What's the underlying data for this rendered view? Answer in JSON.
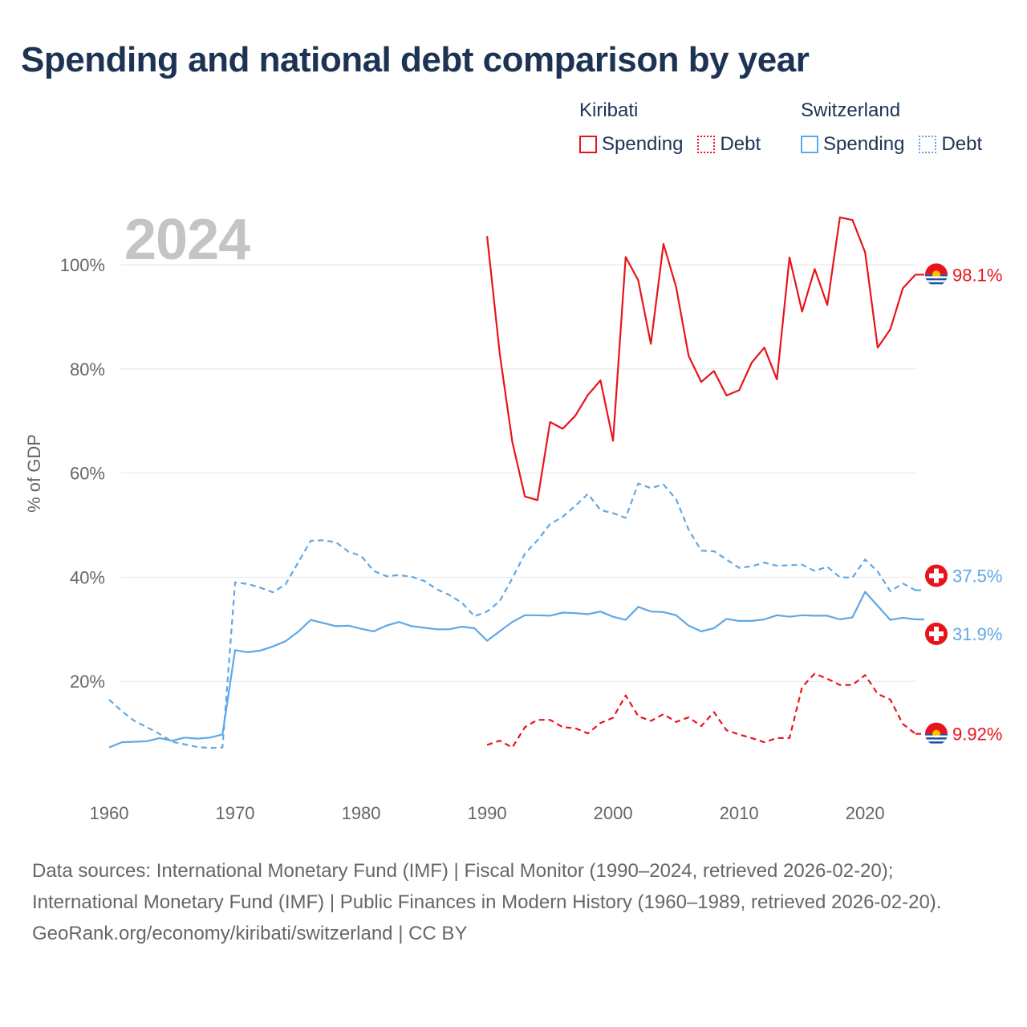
{
  "title": "Spending and national debt comparison by year",
  "legend": {
    "groups": [
      {
        "country": "Kiribati",
        "color": "#e8141b",
        "items": [
          {
            "label": "Spending",
            "style": "solid"
          },
          {
            "label": "Debt",
            "style": "dotted"
          }
        ]
      },
      {
        "country": "Switzerland",
        "color": "#5ea8e6",
        "items": [
          {
            "label": "Spending",
            "style": "solid"
          },
          {
            "label": "Debt",
            "style": "dotted"
          }
        ]
      }
    ]
  },
  "chart_data": {
    "type": "line",
    "year_label": "2024",
    "ylabel": "% of GDP",
    "xlim": [
      1960,
      2024
    ],
    "ylim": [
      0,
      110
    ],
    "x_ticks": [
      1960,
      1970,
      1980,
      1990,
      2000,
      2010,
      2020
    ],
    "x_tick_labels": [
      "1960",
      "1970",
      "1980",
      "1990",
      "2000",
      "2010",
      "2020"
    ],
    "y_ticks": [
      20,
      40,
      60,
      80,
      100
    ],
    "y_tick_labels": [
      "20%",
      "40%",
      "60%",
      "80%",
      "100%"
    ],
    "series": [
      {
        "name": "Kiribati Spending",
        "country": "Kiribati",
        "flag": "kiribati",
        "color": "#e8141b",
        "dash": "solid",
        "start_year": 1990,
        "values": [
          105.5,
          83,
          66,
          55.5,
          54.8,
          69.8,
          68.5,
          71,
          75,
          77.8,
          66.2,
          101.5,
          97,
          84.8,
          104,
          95.8,
          82.5,
          77.5,
          79.6,
          74.9,
          75.9,
          81.2,
          84.1,
          78,
          101.4,
          91,
          99.2,
          92.3,
          109.1,
          108.6,
          102.4,
          84.1,
          87.6,
          95.5,
          98.1
        ],
        "end_label": "98.1%"
      },
      {
        "name": "Kiribati Debt",
        "country": "Kiribati",
        "flag": "kiribati",
        "color": "#e8141b",
        "dash": "dashed",
        "start_year": 1990,
        "values": [
          7.8,
          8.6,
          7.3,
          11.2,
          12.6,
          12.6,
          11.2,
          11,
          10,
          12,
          13,
          17.3,
          13.3,
          12.4,
          13.7,
          12.2,
          13.1,
          11.4,
          14.1,
          10.6,
          9.8,
          9.1,
          8.3,
          9.1,
          9.1,
          18.9,
          21.5,
          20.5,
          19.3,
          19.3,
          21.2,
          17.6,
          16.5,
          11.8,
          9.92
        ],
        "end_label": "9.92%"
      },
      {
        "name": "Switzerland Spending",
        "country": "Switzerland",
        "flag": "switzerland",
        "color": "#5ea8e6",
        "dash": "solid",
        "start_year": 1960,
        "values": [
          7.3,
          8.3,
          8.4,
          8.5,
          9.1,
          8.6,
          9.2,
          9,
          9.2,
          9.8,
          26,
          25.6,
          25.9,
          26.7,
          27.7,
          29.5,
          31.8,
          31.2,
          30.6,
          30.7,
          30.1,
          29.6,
          30.7,
          31.4,
          30.6,
          30.3,
          30,
          30,
          30.5,
          30.2,
          27.8,
          29.6,
          31.4,
          32.7,
          32.7,
          32.6,
          33.2,
          33.1,
          32.9,
          33.4,
          32.4,
          31.8,
          34.3,
          33.4,
          33.3,
          32.7,
          30.7,
          29.6,
          30.2,
          32,
          31.6,
          31.6,
          31.9,
          32.7,
          32.4,
          32.7,
          32.6,
          32.6,
          31.9,
          32.3,
          37.2,
          34.5,
          31.8,
          32.2,
          31.9
        ],
        "end_label": "31.9%"
      },
      {
        "name": "Switzerland Debt",
        "country": "Switzerland",
        "flag": "switzerland",
        "color": "#5ea8e6",
        "dash": "dashed",
        "start_year": 1960,
        "values": [
          16.5,
          14.3,
          12.4,
          11.2,
          9.9,
          8.4,
          7.9,
          7.4,
          7.2,
          7.3,
          39,
          38.7,
          38,
          37.1,
          38.6,
          42.8,
          47,
          47.1,
          46.7,
          44.9,
          44.1,
          41.2,
          40.2,
          40.4,
          40.1,
          39.3,
          37.7,
          36.6,
          35.1,
          32.5,
          33.4,
          35.4,
          39.8,
          44.5,
          47.1,
          50.2,
          51.6,
          53.7,
          56,
          52.9,
          52.3,
          51.4,
          58,
          57.1,
          57.8,
          55,
          49.1,
          45.1,
          45,
          43.4,
          41.8,
          42.1,
          42.8,
          42.2,
          42.3,
          42.4,
          41.2,
          42,
          40,
          39.9,
          43.4,
          41.1,
          37.3,
          38.8,
          37.5
        ],
        "end_label": "37.5%"
      }
    ]
  },
  "footer": {
    "sources": "Data sources: International Monetary Fund (IMF) | Fiscal Monitor (1990–2024, retrieved 2026-02-20); International Monetary Fund (IMF) | Public Finances in Modern History (1960–1989, retrieved 2026-02-20).",
    "credit": "GeoRank.org/economy/kiribati/switzerland | CC BY"
  }
}
